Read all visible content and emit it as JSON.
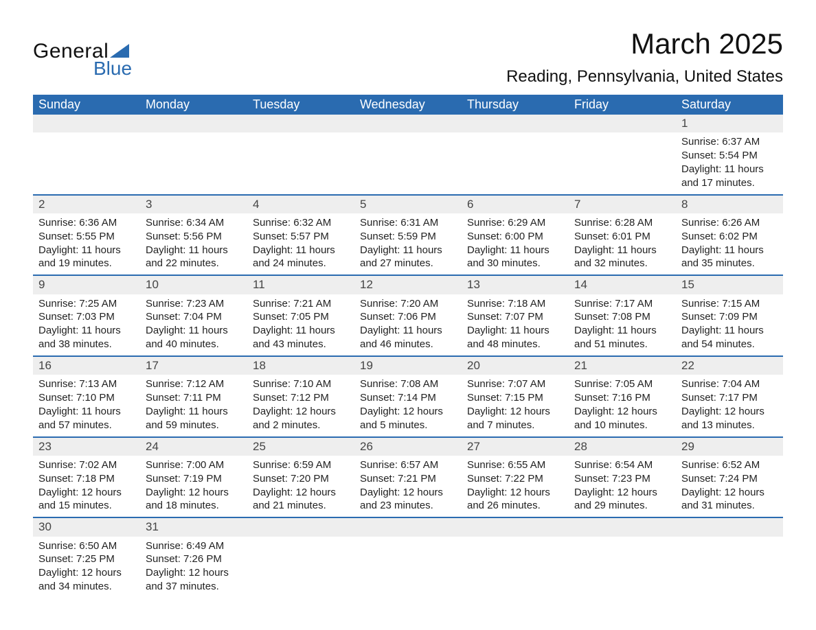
{
  "logo": {
    "textGeneral": "General",
    "textBlue": "Blue",
    "triangleColor": "#2a6bb0"
  },
  "title": "March 2025",
  "location": "Reading, Pennsylvania, United States",
  "header": {
    "bg": "#2a6bb0",
    "fg": "#ffffff",
    "days": [
      "Sunday",
      "Monday",
      "Tuesday",
      "Wednesday",
      "Thursday",
      "Friday",
      "Saturday"
    ]
  },
  "style": {
    "daynumBg": "#eeeeee",
    "rowBorder": "#2a6bb0",
    "bodyFontSize": 15,
    "daynumFontSize": 17,
    "headerFontSize": 18,
    "titleFontSize": 42,
    "locationFontSize": 24
  },
  "weeks": [
    [
      null,
      null,
      null,
      null,
      null,
      null,
      {
        "n": 1,
        "sunrise": "6:37 AM",
        "sunset": "5:54 PM",
        "daylight": "11 hours and 17 minutes."
      }
    ],
    [
      {
        "n": 2,
        "sunrise": "6:36 AM",
        "sunset": "5:55 PM",
        "daylight": "11 hours and 19 minutes."
      },
      {
        "n": 3,
        "sunrise": "6:34 AM",
        "sunset": "5:56 PM",
        "daylight": "11 hours and 22 minutes."
      },
      {
        "n": 4,
        "sunrise": "6:32 AM",
        "sunset": "5:57 PM",
        "daylight": "11 hours and 24 minutes."
      },
      {
        "n": 5,
        "sunrise": "6:31 AM",
        "sunset": "5:59 PM",
        "daylight": "11 hours and 27 minutes."
      },
      {
        "n": 6,
        "sunrise": "6:29 AM",
        "sunset": "6:00 PM",
        "daylight": "11 hours and 30 minutes."
      },
      {
        "n": 7,
        "sunrise": "6:28 AM",
        "sunset": "6:01 PM",
        "daylight": "11 hours and 32 minutes."
      },
      {
        "n": 8,
        "sunrise": "6:26 AM",
        "sunset": "6:02 PM",
        "daylight": "11 hours and 35 minutes."
      }
    ],
    [
      {
        "n": 9,
        "sunrise": "7:25 AM",
        "sunset": "7:03 PM",
        "daylight": "11 hours and 38 minutes."
      },
      {
        "n": 10,
        "sunrise": "7:23 AM",
        "sunset": "7:04 PM",
        "daylight": "11 hours and 40 minutes."
      },
      {
        "n": 11,
        "sunrise": "7:21 AM",
        "sunset": "7:05 PM",
        "daylight": "11 hours and 43 minutes."
      },
      {
        "n": 12,
        "sunrise": "7:20 AM",
        "sunset": "7:06 PM",
        "daylight": "11 hours and 46 minutes."
      },
      {
        "n": 13,
        "sunrise": "7:18 AM",
        "sunset": "7:07 PM",
        "daylight": "11 hours and 48 minutes."
      },
      {
        "n": 14,
        "sunrise": "7:17 AM",
        "sunset": "7:08 PM",
        "daylight": "11 hours and 51 minutes."
      },
      {
        "n": 15,
        "sunrise": "7:15 AM",
        "sunset": "7:09 PM",
        "daylight": "11 hours and 54 minutes."
      }
    ],
    [
      {
        "n": 16,
        "sunrise": "7:13 AM",
        "sunset": "7:10 PM",
        "daylight": "11 hours and 57 minutes."
      },
      {
        "n": 17,
        "sunrise": "7:12 AM",
        "sunset": "7:11 PM",
        "daylight": "11 hours and 59 minutes."
      },
      {
        "n": 18,
        "sunrise": "7:10 AM",
        "sunset": "7:12 PM",
        "daylight": "12 hours and 2 minutes."
      },
      {
        "n": 19,
        "sunrise": "7:08 AM",
        "sunset": "7:14 PM",
        "daylight": "12 hours and 5 minutes."
      },
      {
        "n": 20,
        "sunrise": "7:07 AM",
        "sunset": "7:15 PM",
        "daylight": "12 hours and 7 minutes."
      },
      {
        "n": 21,
        "sunrise": "7:05 AM",
        "sunset": "7:16 PM",
        "daylight": "12 hours and 10 minutes."
      },
      {
        "n": 22,
        "sunrise": "7:04 AM",
        "sunset": "7:17 PM",
        "daylight": "12 hours and 13 minutes."
      }
    ],
    [
      {
        "n": 23,
        "sunrise": "7:02 AM",
        "sunset": "7:18 PM",
        "daylight": "12 hours and 15 minutes."
      },
      {
        "n": 24,
        "sunrise": "7:00 AM",
        "sunset": "7:19 PM",
        "daylight": "12 hours and 18 minutes."
      },
      {
        "n": 25,
        "sunrise": "6:59 AM",
        "sunset": "7:20 PM",
        "daylight": "12 hours and 21 minutes."
      },
      {
        "n": 26,
        "sunrise": "6:57 AM",
        "sunset": "7:21 PM",
        "daylight": "12 hours and 23 minutes."
      },
      {
        "n": 27,
        "sunrise": "6:55 AM",
        "sunset": "7:22 PM",
        "daylight": "12 hours and 26 minutes."
      },
      {
        "n": 28,
        "sunrise": "6:54 AM",
        "sunset": "7:23 PM",
        "daylight": "12 hours and 29 minutes."
      },
      {
        "n": 29,
        "sunrise": "6:52 AM",
        "sunset": "7:24 PM",
        "daylight": "12 hours and 31 minutes."
      }
    ],
    [
      {
        "n": 30,
        "sunrise": "6:50 AM",
        "sunset": "7:25 PM",
        "daylight": "12 hours and 34 minutes."
      },
      {
        "n": 31,
        "sunrise": "6:49 AM",
        "sunset": "7:26 PM",
        "daylight": "12 hours and 37 minutes."
      },
      null,
      null,
      null,
      null,
      null
    ]
  ],
  "labels": {
    "sunrise": "Sunrise:",
    "sunset": "Sunset:",
    "daylight": "Daylight:"
  }
}
